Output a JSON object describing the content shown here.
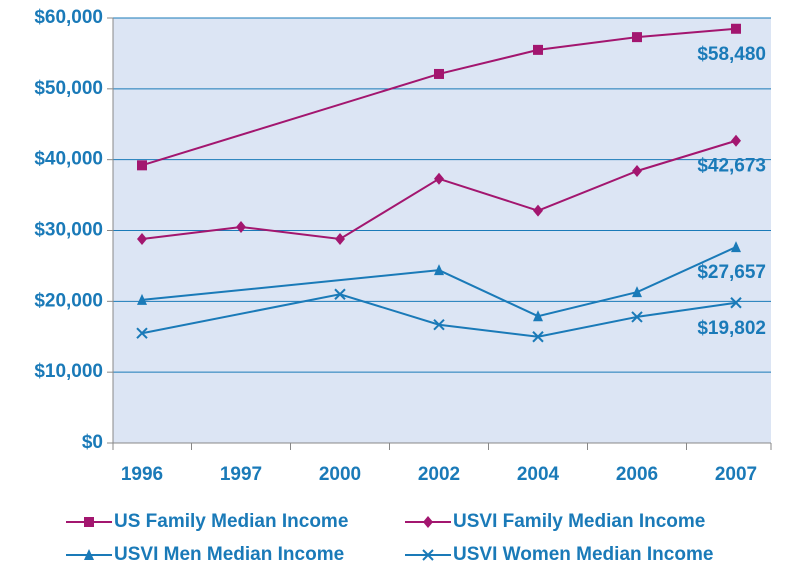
{
  "chart_data": {
    "type": "line",
    "categories": [
      "1996",
      "1997",
      "2000",
      "2002",
      "2004",
      "2006",
      "2007"
    ],
    "series": [
      {
        "name": "US Family Median Income",
        "color": "#a3166f",
        "marker": "square",
        "values": [
          39200,
          null,
          null,
          52100,
          55500,
          57300,
          58480
        ],
        "value_labels": [
          null,
          null,
          null,
          null,
          null,
          null,
          "$58,480"
        ]
      },
      {
        "name": "USVI Family Median Income",
        "color": "#a3166f",
        "marker": "diamond",
        "values": [
          28800,
          30500,
          28800,
          37300,
          32800,
          38400,
          42673
        ],
        "value_labels": [
          null,
          null,
          null,
          null,
          null,
          null,
          "$42,673"
        ]
      },
      {
        "name": "USVI Men Median Income",
        "color": "#1a7ab8",
        "marker": "triangle",
        "values": [
          20200,
          null,
          null,
          24400,
          17900,
          21300,
          27657
        ],
        "value_labels": [
          null,
          null,
          null,
          null,
          null,
          null,
          "$27,657"
        ]
      },
      {
        "name": "USVI Women Median Income",
        "color": "#1a7ab8",
        "marker": "x",
        "values": [
          15500,
          null,
          21000,
          16700,
          15000,
          17800,
          19802
        ],
        "value_labels": [
          null,
          null,
          null,
          null,
          null,
          null,
          "$19,802"
        ]
      }
    ],
    "ylim": [
      0,
      60000
    ],
    "yticks": [
      {
        "value": 0,
        "label": "$0"
      },
      {
        "value": 10000,
        "label": "$10,000"
      },
      {
        "value": 20000,
        "label": "$20,000"
      },
      {
        "value": 30000,
        "label": "$30,000"
      },
      {
        "value": 40000,
        "label": "$40,000"
      },
      {
        "value": 50000,
        "label": "$50,000"
      },
      {
        "value": 60000,
        "label": "$60,000"
      }
    ],
    "grid": true,
    "legend": "bottom"
  }
}
